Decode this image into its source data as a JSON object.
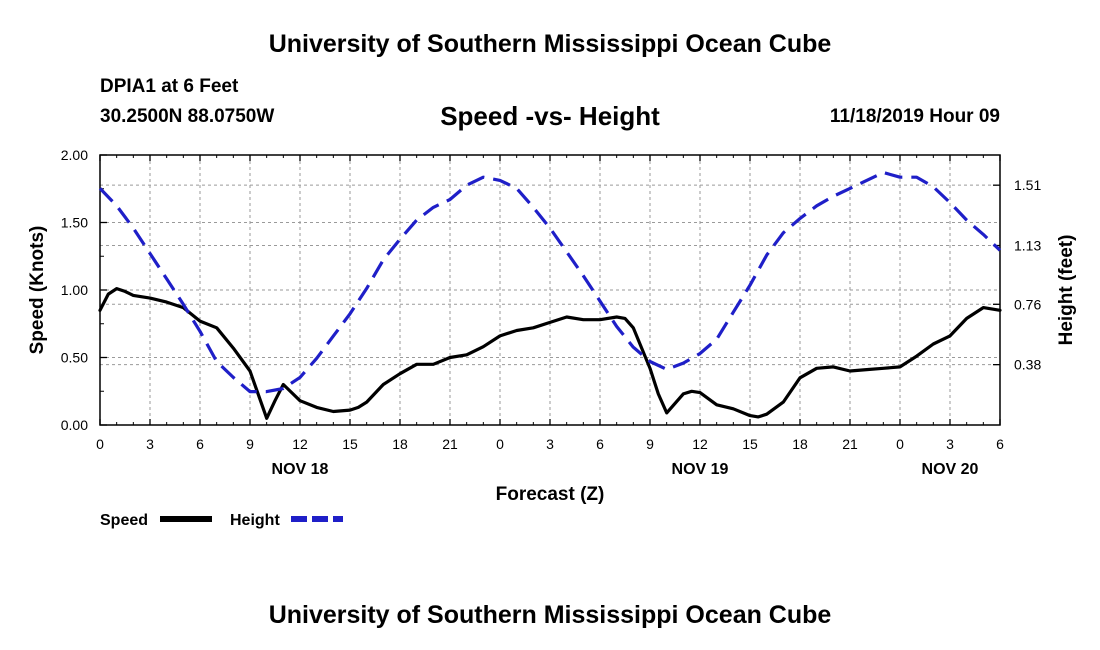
{
  "header": {
    "title_top": "University of Southern Mississippi Ocean Cube",
    "station": "DPIA1 at 6 Feet",
    "coords": "30.2500N 88.0750W",
    "chart_title": "Speed -vs- Height",
    "datetime": "11/18/2019 Hour 09",
    "title_bottom": "University of Southern Mississippi Ocean Cube"
  },
  "colors": {
    "speed": "#000000",
    "height": "#1f1fc8"
  },
  "chart_data": {
    "type": "line",
    "title": "Speed -vs- Height",
    "xlabel": "Forecast (Z)",
    "ylabel": "Speed (Knots)",
    "y2label": "Height (feet)",
    "xlim": [
      0,
      54
    ],
    "ylim": [
      0,
      2.0
    ],
    "y2lim": [
      0.0,
      1.7
    ],
    "x_ticks": [
      {
        "x": 0,
        "label": "0"
      },
      {
        "x": 3,
        "label": "3"
      },
      {
        "x": 6,
        "label": "6"
      },
      {
        "x": 9,
        "label": "9"
      },
      {
        "x": 12,
        "label": "12"
      },
      {
        "x": 15,
        "label": "15"
      },
      {
        "x": 18,
        "label": "18"
      },
      {
        "x": 21,
        "label": "21"
      },
      {
        "x": 24,
        "label": "0"
      },
      {
        "x": 27,
        "label": "3"
      },
      {
        "x": 30,
        "label": "6"
      },
      {
        "x": 33,
        "label": "9"
      },
      {
        "x": 36,
        "label": "12"
      },
      {
        "x": 39,
        "label": "15"
      },
      {
        "x": 42,
        "label": "18"
      },
      {
        "x": 45,
        "label": "21"
      },
      {
        "x": 48,
        "label": "0"
      },
      {
        "x": 51,
        "label": "3"
      },
      {
        "x": 54,
        "label": "6"
      }
    ],
    "y_ticks": [
      {
        "y": 0.0,
        "label": "0.00"
      },
      {
        "y": 0.5,
        "label": "0.50"
      },
      {
        "y": 1.0,
        "label": "1.00"
      },
      {
        "y": 1.5,
        "label": "1.50"
      },
      {
        "y": 2.0,
        "label": "2.00"
      }
    ],
    "y2_ticks": [
      {
        "y": 0.38,
        "label": "0.38"
      },
      {
        "y": 0.76,
        "label": "0.76"
      },
      {
        "y": 1.13,
        "label": "1.13"
      },
      {
        "y": 1.51,
        "label": "1.51"
      }
    ],
    "date_labels": [
      {
        "x": 12,
        "label": "NOV 18"
      },
      {
        "x": 36,
        "label": "NOV 19"
      },
      {
        "x": 51,
        "label": "NOV 20"
      }
    ],
    "legend": [
      {
        "name": "Speed",
        "style": "solid"
      },
      {
        "name": "Height",
        "style": "dashed"
      }
    ],
    "series": [
      {
        "name": "Speed",
        "axis": "left",
        "style": "solid",
        "x": [
          0,
          0.5,
          1,
          1.5,
          2,
          3,
          4,
          5,
          6,
          7,
          8,
          9,
          10,
          10.5,
          11,
          11.5,
          12,
          13,
          14,
          15,
          15.5,
          16,
          17,
          18,
          19,
          20,
          21,
          22,
          23,
          24,
          25,
          26,
          27,
          28,
          29,
          30,
          31,
          31.5,
          32,
          33,
          33.5,
          34,
          35,
          35.5,
          36,
          37,
          38,
          39,
          39.5,
          40,
          41,
          42,
          43,
          44,
          45,
          46,
          47,
          48,
          49,
          50,
          51,
          52,
          53,
          54
        ],
        "values": [
          0.85,
          0.97,
          1.01,
          0.99,
          0.96,
          0.94,
          0.91,
          0.87,
          0.77,
          0.72,
          0.57,
          0.4,
          0.05,
          0.18,
          0.3,
          0.24,
          0.18,
          0.13,
          0.1,
          0.11,
          0.13,
          0.17,
          0.3,
          0.38,
          0.45,
          0.45,
          0.5,
          0.52,
          0.58,
          0.66,
          0.7,
          0.72,
          0.76,
          0.8,
          0.78,
          0.78,
          0.8,
          0.79,
          0.72,
          0.42,
          0.23,
          0.09,
          0.23,
          0.25,
          0.24,
          0.15,
          0.12,
          0.07,
          0.06,
          0.08,
          0.17,
          0.35,
          0.42,
          0.43,
          0.4,
          0.41,
          0.42,
          0.43,
          0.51,
          0.6,
          0.66,
          0.79,
          0.87,
          0.85
        ]
      },
      {
        "name": "Height",
        "axis": "right",
        "style": "dashed",
        "x": [
          0,
          1,
          2,
          3,
          4,
          5,
          6,
          7,
          8,
          9,
          10,
          11,
          12,
          13,
          14,
          15,
          16,
          17,
          18,
          19,
          20,
          21,
          22,
          23,
          24,
          25,
          26,
          27,
          28,
          29,
          30,
          31,
          32,
          33,
          34,
          35,
          36,
          37,
          38,
          39,
          40,
          41,
          42,
          43,
          44,
          45,
          46,
          47,
          48,
          49,
          50,
          51,
          52,
          53,
          54
        ],
        "values": [
          1.49,
          1.38,
          1.24,
          1.08,
          0.92,
          0.76,
          0.59,
          0.4,
          0.3,
          0.21,
          0.21,
          0.23,
          0.3,
          0.42,
          0.56,
          0.7,
          0.86,
          1.04,
          1.17,
          1.29,
          1.37,
          1.42,
          1.51,
          1.56,
          1.54,
          1.49,
          1.37,
          1.24,
          1.09,
          0.94,
          0.78,
          0.62,
          0.49,
          0.4,
          0.35,
          0.39,
          0.45,
          0.54,
          0.71,
          0.88,
          1.07,
          1.21,
          1.3,
          1.38,
          1.44,
          1.49,
          1.54,
          1.59,
          1.56,
          1.56,
          1.5,
          1.4,
          1.29,
          1.2,
          1.1
        ]
      }
    ]
  }
}
